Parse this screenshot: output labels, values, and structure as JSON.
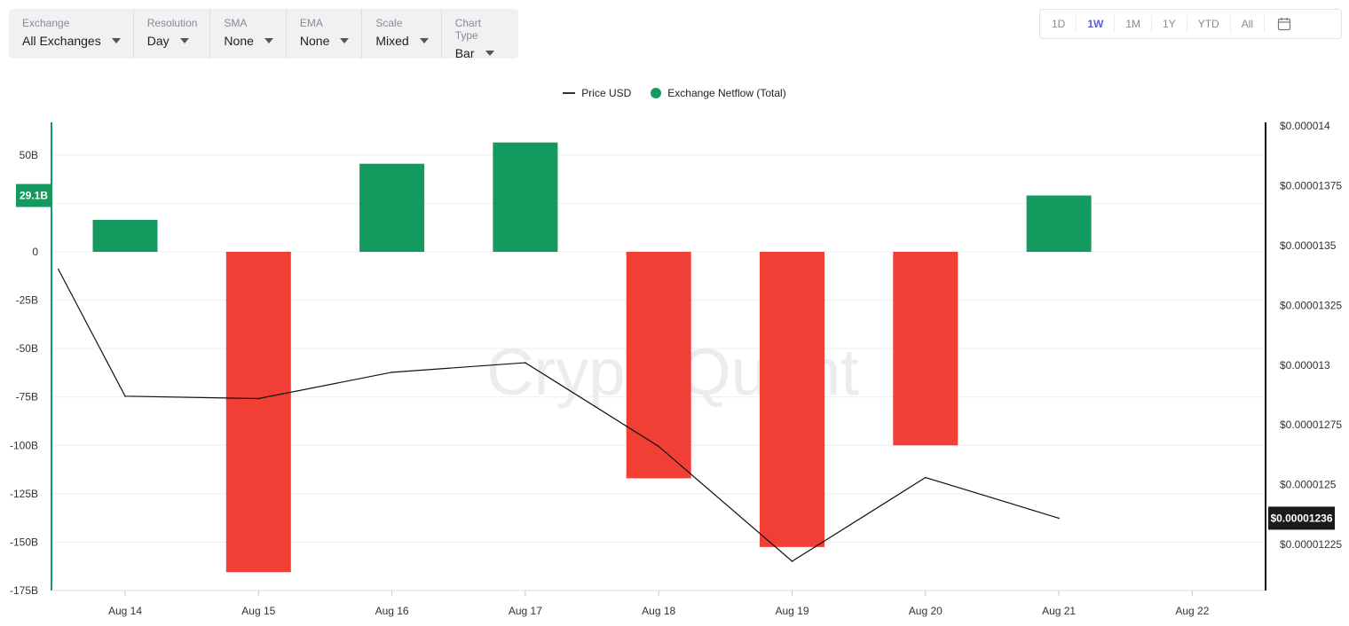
{
  "toolbar": {
    "controls": [
      {
        "label": "Exchange",
        "value": "All Exchanges"
      },
      {
        "label": "Resolution",
        "value": "Day"
      },
      {
        "label": "SMA",
        "value": "None"
      },
      {
        "label": "EMA",
        "value": "None"
      },
      {
        "label": "Scale",
        "value": "Mixed"
      },
      {
        "label": "Chart Type",
        "value": "Bar"
      }
    ]
  },
  "range": {
    "buttons": [
      "1D",
      "1W",
      "1M",
      "1Y",
      "YTD",
      "All"
    ],
    "active": "1W"
  },
  "watermark": "CryptoQuant",
  "colors": {
    "positive": "#149a5f",
    "negative": "#f23f35",
    "price_line": "#111111",
    "accent": "#5a5ed6"
  },
  "chart_data": {
    "type": "bar",
    "categories": [
      "Aug 14",
      "Aug 15",
      "Aug 16",
      "Aug 17",
      "Aug 18",
      "Aug 19",
      "Aug 20",
      "Aug 21",
      "Aug 22"
    ],
    "series": [
      {
        "name": "Exchange Netflow (Total)",
        "type": "bar",
        "axis": "left",
        "color": "#149a5f",
        "values": [
          16.5,
          -165.5,
          45.5,
          56.5,
          -117,
          -152.5,
          -100,
          29.1,
          null
        ]
      },
      {
        "name": "Price USD",
        "type": "line",
        "axis": "right",
        "color": "#111111",
        "x": [
          -0.5,
          0,
          1,
          2,
          3,
          4,
          5,
          6,
          7
        ],
        "values": [
          1.34e-05,
          1.287e-05,
          1.286e-05,
          1.297e-05,
          1.301e-05,
          1.266e-05,
          1.218e-05,
          1.253e-05,
          1.236e-05
        ]
      }
    ],
    "left_axis": {
      "ylim": [
        -175,
        62
      ],
      "ticks": [
        50,
        25,
        0,
        -25,
        -50,
        -75,
        -100,
        -125,
        -150,
        -175
      ],
      "tick_labels": [
        "50B",
        "",
        "0",
        "-25B",
        "-50B",
        "-75B",
        "-100B",
        "-125B",
        "-150B",
        "-175B"
      ],
      "current_label": "29.1B",
      "current_value": 29.1
    },
    "right_axis": {
      "ylim": [
        1.20575e-05,
        1.4e-05
      ],
      "ticks": [
        1.4e-05,
        1.375e-05,
        1.35e-05,
        1.325e-05,
        1.3e-05,
        1.275e-05,
        1.25e-05,
        1.225e-05
      ],
      "tick_labels": [
        "$0.000014",
        "$0.00001375",
        "$0.0000135",
        "$0.00001325",
        "$0.000013",
        "$0.00001275",
        "$0.0000125",
        "$0.00001225"
      ],
      "current_label": "$0.00001236",
      "current_value": 1.236e-05
    },
    "grid": true,
    "legend_position": "top-center"
  }
}
